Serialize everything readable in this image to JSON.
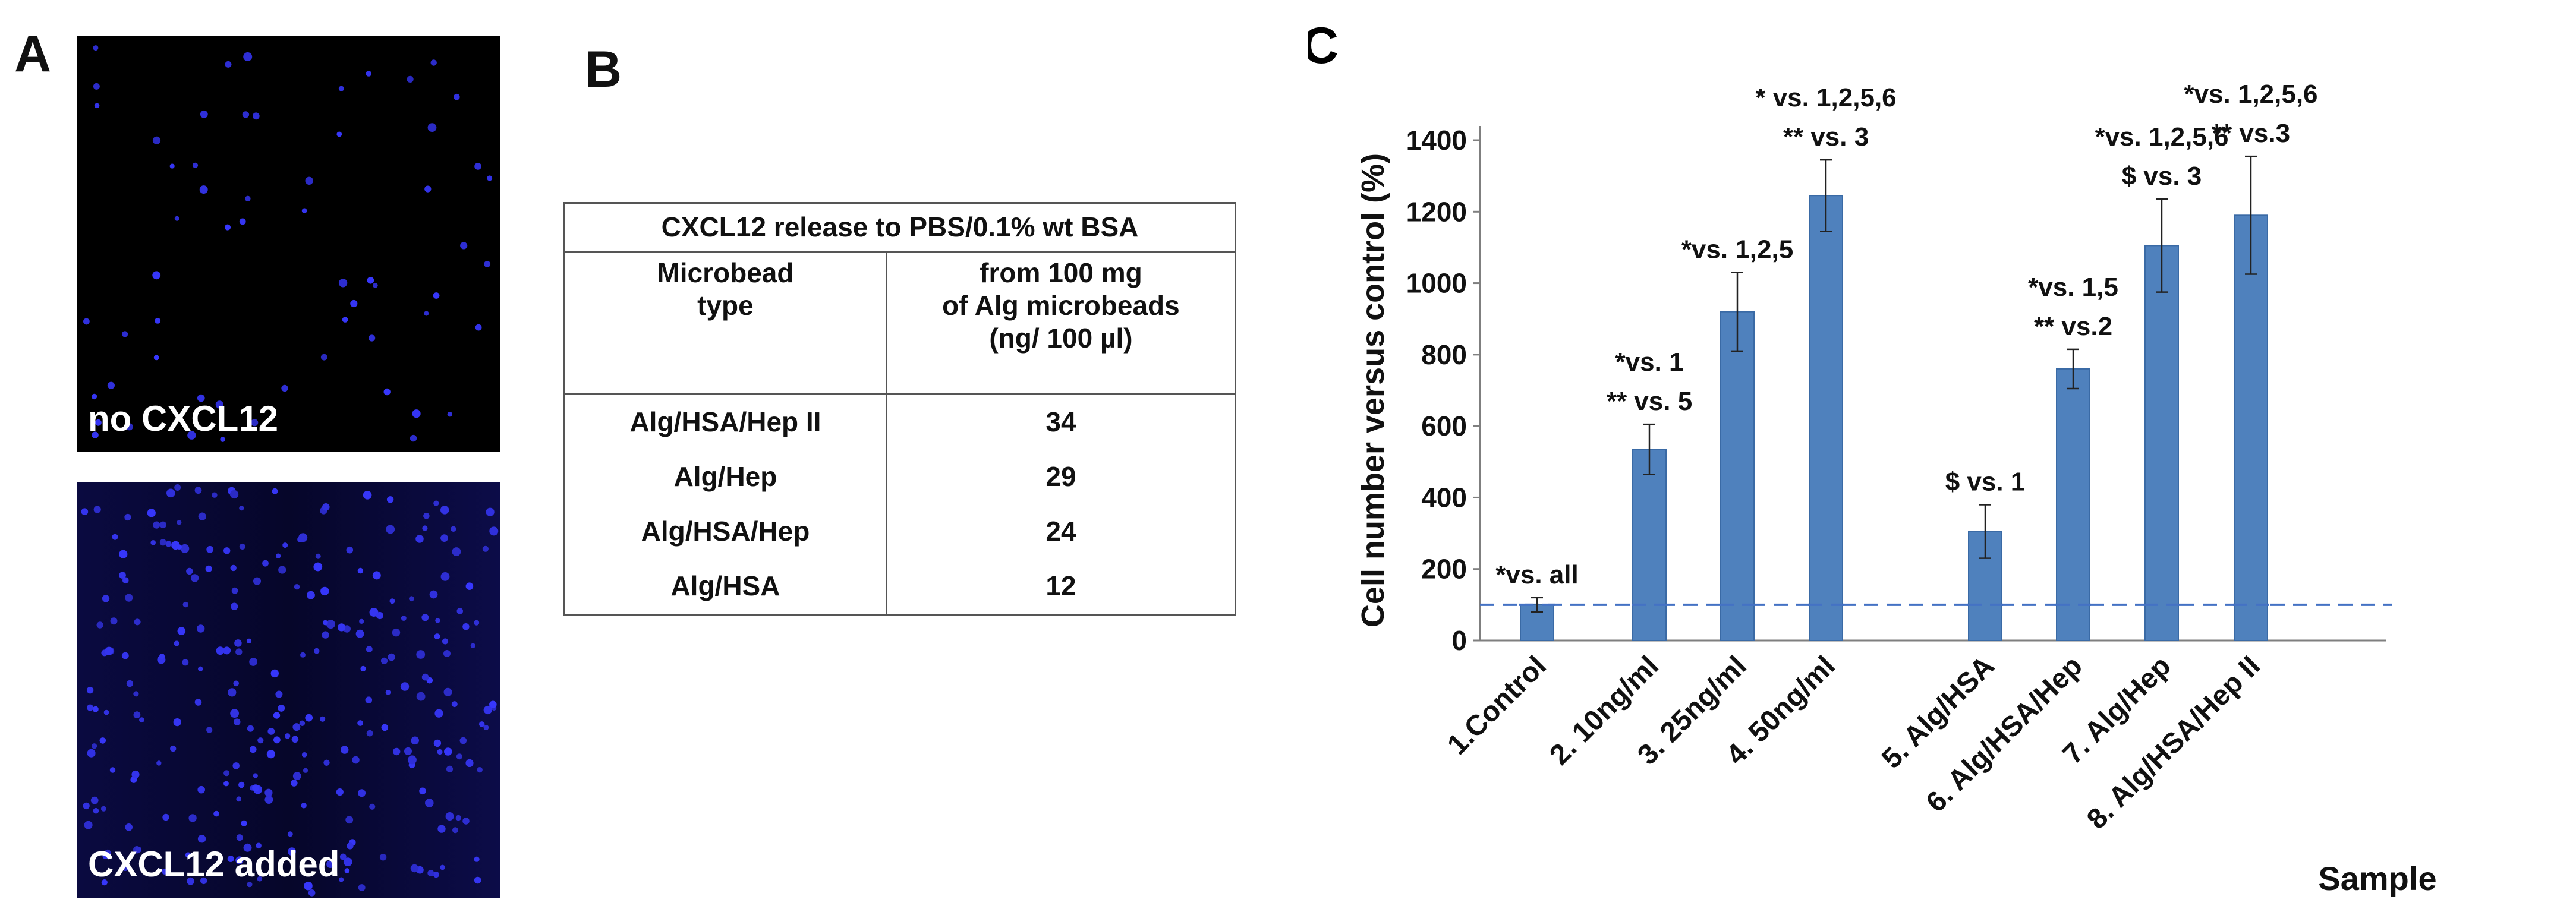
{
  "panel_a": {
    "letter": "A",
    "top_label": "no CXCL12",
    "bottom_label": "CXCL12 added"
  },
  "panel_b": {
    "letter": "B",
    "caption": "CXCL12 release to PBS/0.1% wt BSA",
    "header_type_1": "Microbead",
    "header_type_2": "type",
    "header_release_1": "from 100 mg",
    "header_release_2": "of Alg microbeads",
    "header_release_3": "(ng/ 100 µl)",
    "rows": [
      {
        "type": "Alg/HSA/Hep II",
        "value": "34"
      },
      {
        "type": "Alg/Hep",
        "value": "29"
      },
      {
        "type": "Alg/HSA/Hep",
        "value": "24"
      },
      {
        "type": "Alg/HSA",
        "value": "12"
      }
    ]
  },
  "chart_data": {
    "type": "bar",
    "panel_letter": "C",
    "categories": [
      "1.Control",
      "2. 10ng/ml",
      "3. 25ng/ml",
      "4. 50ng/ml",
      "5. Alg/HSA",
      "6. Alg/HSA/Hep",
      "7. Alg/Hep",
      "8. Alg/HSA/Hep II"
    ],
    "values": [
      100,
      535,
      920,
      1245,
      305,
      760,
      1105,
      1190
    ],
    "errors": [
      20,
      70,
      110,
      100,
      75,
      55,
      130,
      165
    ],
    "ylabel": "Cell number versus control (%)",
    "xlabel": "Sample",
    "ylim": [
      0,
      1400
    ],
    "yticks": [
      "0",
      "200",
      "400",
      "600",
      "800",
      "1000",
      "1200",
      "1400"
    ],
    "reference_line": 100,
    "annotations": [
      [
        "*vs. all"
      ],
      [
        "*vs. 1",
        "** vs. 5"
      ],
      [
        "*vs. 1,2,5"
      ],
      [
        "* vs. 1,2,5,6",
        "** vs. 3"
      ],
      [
        "$ vs. 1"
      ],
      [
        "*vs. 1,5",
        "** vs.2"
      ],
      [
        "*vs. 1,2,5,6",
        "$ vs. 3"
      ],
      [
        "*vs. 1,2,5,6",
        "** vs.3"
      ]
    ],
    "colors": {
      "bar": "#4f81bd",
      "bar_edge": "#3a6aa5",
      "reference": "#4472c4",
      "axis": "#7f7f7f"
    }
  }
}
